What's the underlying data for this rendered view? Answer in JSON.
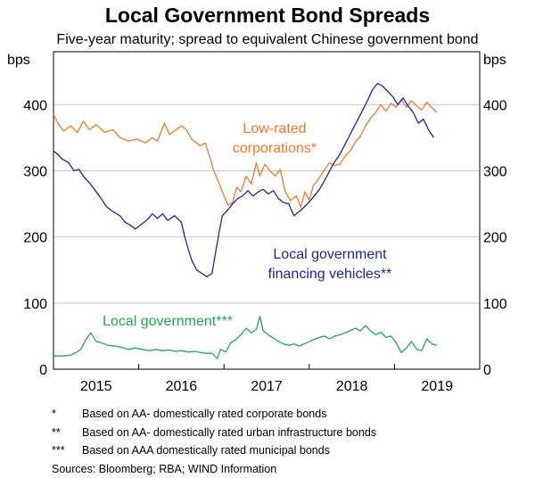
{
  "chart_data": {
    "type": "line",
    "title": "Local Government Bond Spreads",
    "subtitle": "Five-year maturity; spread to equivalent Chinese government bond",
    "ylabel_left": "bps",
    "ylabel_right": "bps",
    "ylim": [
      0,
      480
    ],
    "yticks": [
      0,
      100,
      200,
      300,
      400
    ],
    "xlim": [
      2014.5,
      2019.5
    ],
    "xticks": [
      {
        "label": "2015",
        "pos": 2015.0
      },
      {
        "label": "2016",
        "pos": 2016.0
      },
      {
        "label": "2017",
        "pos": 2017.0
      },
      {
        "label": "2018",
        "pos": 2018.0
      },
      {
        "label": "2019",
        "pos": 2019.0
      }
    ],
    "grid": true,
    "series": [
      {
        "name": "Low-rated corporations*",
        "color": "#f07828",
        "label_lines": [
          "Low-rated",
          "corporations*"
        ],
        "points": [
          [
            2014.5,
            385
          ],
          [
            2014.55,
            372
          ],
          [
            2014.62,
            360
          ],
          [
            2014.7,
            368
          ],
          [
            2014.78,
            358
          ],
          [
            2014.85,
            375
          ],
          [
            2014.92,
            362
          ],
          [
            2015.0,
            370
          ],
          [
            2015.1,
            358
          ],
          [
            2015.2,
            362
          ],
          [
            2015.28,
            350
          ],
          [
            2015.38,
            345
          ],
          [
            2015.48,
            348
          ],
          [
            2015.58,
            342
          ],
          [
            2015.66,
            350
          ],
          [
            2015.72,
            345
          ],
          [
            2015.8,
            372
          ],
          [
            2015.86,
            355
          ],
          [
            2016.0,
            368
          ],
          [
            2016.06,
            362
          ],
          [
            2016.12,
            348
          ],
          [
            2016.22,
            338
          ],
          [
            2016.28,
            342
          ],
          [
            2016.34,
            318
          ],
          [
            2016.38,
            300
          ],
          [
            2016.44,
            282
          ],
          [
            2016.5,
            262
          ],
          [
            2016.55,
            248
          ],
          [
            2016.6,
            252
          ],
          [
            2016.65,
            275
          ],
          [
            2016.7,
            268
          ],
          [
            2016.76,
            292
          ],
          [
            2016.82,
            280
          ],
          [
            2016.88,
            312
          ],
          [
            2016.92,
            292
          ],
          [
            2016.98,
            310
          ],
          [
            2017.04,
            300
          ],
          [
            2017.1,
            292
          ],
          [
            2017.16,
            302
          ],
          [
            2017.22,
            268
          ],
          [
            2017.28,
            255
          ],
          [
            2017.35,
            262
          ],
          [
            2017.4,
            245
          ],
          [
            2017.45,
            268
          ],
          [
            2017.5,
            256
          ],
          [
            2017.55,
            278
          ],
          [
            2017.6,
            286
          ],
          [
            2017.68,
            302
          ],
          [
            2017.74,
            312
          ],
          [
            2017.8,
            308
          ],
          [
            2017.86,
            310
          ],
          [
            2017.92,
            322
          ],
          [
            2017.98,
            330
          ],
          [
            2018.05,
            345
          ],
          [
            2018.1,
            352
          ],
          [
            2018.16,
            368
          ],
          [
            2018.22,
            380
          ],
          [
            2018.28,
            388
          ],
          [
            2018.34,
            400
          ],
          [
            2018.4,
            390
          ],
          [
            2018.46,
            402
          ],
          [
            2018.52,
            396
          ],
          [
            2018.58,
            408
          ],
          [
            2018.64,
            396
          ],
          [
            2018.7,
            406
          ],
          [
            2018.76,
            398
          ],
          [
            2018.82,
            392
          ],
          [
            2018.88,
            404
          ],
          [
            2018.94,
            395
          ],
          [
            2019.0,
            388
          ]
        ]
      },
      {
        "name": "Local government financing vehicles**",
        "color": "#1c2696",
        "label_lines": [
          "Local government",
          "financing vehicles**"
        ],
        "points": [
          [
            2014.5,
            330
          ],
          [
            2014.55,
            325
          ],
          [
            2014.6,
            318
          ],
          [
            2014.68,
            312
          ],
          [
            2014.74,
            300
          ],
          [
            2014.8,
            302
          ],
          [
            2014.86,
            290
          ],
          [
            2014.92,
            282
          ],
          [
            2014.98,
            272
          ],
          [
            2015.06,
            258
          ],
          [
            2015.12,
            246
          ],
          [
            2015.2,
            238
          ],
          [
            2015.28,
            232
          ],
          [
            2015.34,
            222
          ],
          [
            2015.4,
            218
          ],
          [
            2015.46,
            212
          ],
          [
            2015.52,
            218
          ],
          [
            2015.6,
            226
          ],
          [
            2015.66,
            235
          ],
          [
            2015.72,
            228
          ],
          [
            2015.78,
            235
          ],
          [
            2015.84,
            225
          ],
          [
            2015.92,
            232
          ],
          [
            2016.0,
            222
          ],
          [
            2016.04,
            200
          ],
          [
            2016.08,
            182
          ],
          [
            2016.12,
            165
          ],
          [
            2016.18,
            150
          ],
          [
            2016.24,
            145
          ],
          [
            2016.3,
            140
          ],
          [
            2016.36,
            145
          ],
          [
            2016.4,
            175
          ],
          [
            2016.44,
            205
          ],
          [
            2016.48,
            232
          ],
          [
            2016.54,
            240
          ],
          [
            2016.6,
            250
          ],
          [
            2016.66,
            258
          ],
          [
            2016.72,
            262
          ],
          [
            2016.78,
            270
          ],
          [
            2016.84,
            262
          ],
          [
            2016.9,
            268
          ],
          [
            2016.96,
            272
          ],
          [
            2017.02,
            265
          ],
          [
            2017.08,
            270
          ],
          [
            2017.14,
            258
          ],
          [
            2017.2,
            252
          ],
          [
            2017.26,
            250
          ],
          [
            2017.32,
            232
          ],
          [
            2017.4,
            240
          ],
          [
            2017.48,
            250
          ],
          [
            2017.56,
            262
          ],
          [
            2017.62,
            272
          ],
          [
            2017.7,
            290
          ],
          [
            2017.78,
            310
          ],
          [
            2017.86,
            325
          ],
          [
            2017.94,
            345
          ],
          [
            2018.0,
            360
          ],
          [
            2018.06,
            375
          ],
          [
            2018.12,
            390
          ],
          [
            2018.18,
            405
          ],
          [
            2018.24,
            422
          ],
          [
            2018.3,
            432
          ],
          [
            2018.36,
            428
          ],
          [
            2018.42,
            420
          ],
          [
            2018.48,
            412
          ],
          [
            2018.54,
            400
          ],
          [
            2018.6,
            410
          ],
          [
            2018.66,
            398
          ],
          [
            2018.72,
            388
          ],
          [
            2018.78,
            372
          ],
          [
            2018.84,
            378
          ],
          [
            2018.9,
            362
          ],
          [
            2018.96,
            350
          ]
        ]
      },
      {
        "name": "Local government***",
        "color": "#22a84a",
        "label_lines": [
          "Local government***"
        ],
        "points": [
          [
            2014.5,
            20
          ],
          [
            2014.6,
            20
          ],
          [
            2014.7,
            21
          ],
          [
            2014.76,
            25
          ],
          [
            2014.82,
            30
          ],
          [
            2014.88,
            45
          ],
          [
            2014.94,
            55
          ],
          [
            2015.0,
            42
          ],
          [
            2015.06,
            40
          ],
          [
            2015.14,
            36
          ],
          [
            2015.22,
            35
          ],
          [
            2015.3,
            33
          ],
          [
            2015.38,
            30
          ],
          [
            2015.46,
            32
          ],
          [
            2015.54,
            30
          ],
          [
            2015.62,
            28
          ],
          [
            2015.7,
            30
          ],
          [
            2015.78,
            28
          ],
          [
            2015.86,
            29
          ],
          [
            2015.94,
            27
          ],
          [
            2016.0,
            28
          ],
          [
            2016.08,
            26
          ],
          [
            2016.16,
            27
          ],
          [
            2016.24,
            25
          ],
          [
            2016.3,
            24
          ],
          [
            2016.36,
            24
          ],
          [
            2016.42,
            16
          ],
          [
            2016.46,
            30
          ],
          [
            2016.52,
            26
          ],
          [
            2016.58,
            40
          ],
          [
            2016.64,
            45
          ],
          [
            2016.7,
            52
          ],
          [
            2016.76,
            62
          ],
          [
            2016.82,
            55
          ],
          [
            2016.88,
            60
          ],
          [
            2016.92,
            80
          ],
          [
            2016.96,
            58
          ],
          [
            2017.02,
            52
          ],
          [
            2017.08,
            47
          ],
          [
            2017.14,
            42
          ],
          [
            2017.2,
            38
          ],
          [
            2017.26,
            36
          ],
          [
            2017.32,
            38
          ],
          [
            2017.38,
            35
          ],
          [
            2017.44,
            38
          ],
          [
            2017.5,
            42
          ],
          [
            2017.56,
            45
          ],
          [
            2017.62,
            48
          ],
          [
            2017.68,
            50
          ],
          [
            2017.74,
            46
          ],
          [
            2017.8,
            50
          ],
          [
            2017.86,
            52
          ],
          [
            2017.92,
            55
          ],
          [
            2017.98,
            58
          ],
          [
            2018.04,
            62
          ],
          [
            2018.1,
            58
          ],
          [
            2018.16,
            66
          ],
          [
            2018.22,
            58
          ],
          [
            2018.28,
            52
          ],
          [
            2018.34,
            56
          ],
          [
            2018.4,
            48
          ],
          [
            2018.46,
            50
          ],
          [
            2018.52,
            40
          ],
          [
            2018.58,
            25
          ],
          [
            2018.64,
            32
          ],
          [
            2018.7,
            42
          ],
          [
            2018.76,
            30
          ],
          [
            2018.82,
            28
          ],
          [
            2018.88,
            46
          ],
          [
            2018.94,
            38
          ],
          [
            2019.0,
            36
          ]
        ]
      }
    ]
  },
  "footnotes": [
    {
      "marker": "*",
      "text": "Based on AA- domestically rated corporate bonds"
    },
    {
      "marker": "**",
      "text": "Based on AA- domestically rated urban infrastructure bonds"
    },
    {
      "marker": "***",
      "text": "Based on AAA domestically rated municipal bonds"
    }
  ],
  "sources": "Sources:  Bloomberg; RBA; WIND Information"
}
